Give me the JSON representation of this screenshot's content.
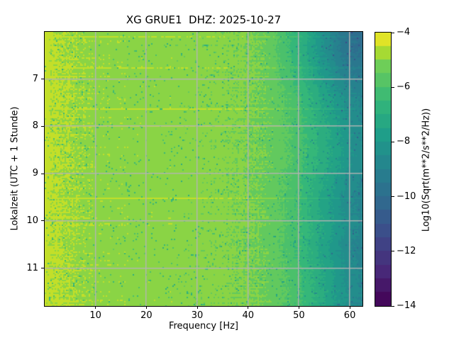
{
  "figure": {
    "background": "#ffffff",
    "text_color": "#000000"
  },
  "chart_data": {
    "type": "heatmap",
    "subtype": "seismic-spectrogram",
    "title": "XG GRUE1  DHZ: 2025-10-27",
    "xlabel": "Frequency [Hz]",
    "ylabel": "Lokalzeit (UTC + 1 Stunde)",
    "colorbar_label": "Log10(Sqrt(m**2/s**2/Hz))",
    "x_range_hz": [
      0,
      62.5
    ],
    "x_ticks": [
      10,
      20,
      30,
      40,
      50,
      60
    ],
    "x_tick_labels": [
      "10",
      "20",
      "30",
      "40",
      "50",
      "60"
    ],
    "y_range_hours": [
      6.0,
      11.8
    ],
    "y_ticks": [
      7,
      8,
      9,
      10,
      11
    ],
    "y_tick_labels": [
      "7",
      "8",
      "9",
      "10",
      "11"
    ],
    "colorbar_range_top_bottom": [
      -4,
      -14
    ],
    "colorbar_ticks": [
      -4,
      -6,
      -8,
      -10,
      -12,
      -14
    ],
    "colorbar_tick_labels": [
      "−4",
      "−6",
      "−8",
      "−10",
      "−12",
      "−14"
    ],
    "grid": true,
    "grid_color": "#b3b3b3",
    "colormap": "viridis",
    "colormap_stops": [
      {
        "t": 0.0,
        "color": "#440154"
      },
      {
        "t": 0.125,
        "color": "#482878"
      },
      {
        "t": 0.25,
        "color": "#3e4989"
      },
      {
        "t": 0.375,
        "color": "#31688e"
      },
      {
        "t": 0.5,
        "color": "#26828e"
      },
      {
        "t": 0.625,
        "color": "#1f9e89"
      },
      {
        "t": 0.75,
        "color": "#35b779"
      },
      {
        "t": 0.875,
        "color": "#6ece58"
      },
      {
        "t": 0.9375,
        "color": "#b5de2b"
      },
      {
        "t": 1.0,
        "color": "#fde725"
      }
    ],
    "frequency_profile_log10": [
      {
        "f": 0.3,
        "v": -4.5
      },
      {
        "f": 1,
        "v": -4.6
      },
      {
        "f": 3,
        "v": -4.7
      },
      {
        "f": 6,
        "v": -4.8
      },
      {
        "f": 10,
        "v": -4.9
      },
      {
        "f": 15,
        "v": -4.95
      },
      {
        "f": 20,
        "v": -5.0
      },
      {
        "f": 25,
        "v": -5.0
      },
      {
        "f": 30,
        "v": -5.05
      },
      {
        "f": 35,
        "v": -5.1
      },
      {
        "f": 40,
        "v": -5.2
      },
      {
        "f": 44,
        "v": -5.35
      },
      {
        "f": 47,
        "v": -5.7
      },
      {
        "f": 50,
        "v": -6.2
      },
      {
        "f": 53,
        "v": -6.9
      },
      {
        "f": 56,
        "v": -7.6
      },
      {
        "f": 59,
        "v": -8.3
      },
      {
        "f": 62.5,
        "v": -8.9
      }
    ],
    "notes": "Broadband yellow-green (~1e-5) below 45 Hz, brightest below 2 Hz; energy falls to teal/blue above 45 Hz; quietest high-frequency band 06:00-07:00 (top right, dark blue); scattered brighter horizontal event streaks."
  }
}
